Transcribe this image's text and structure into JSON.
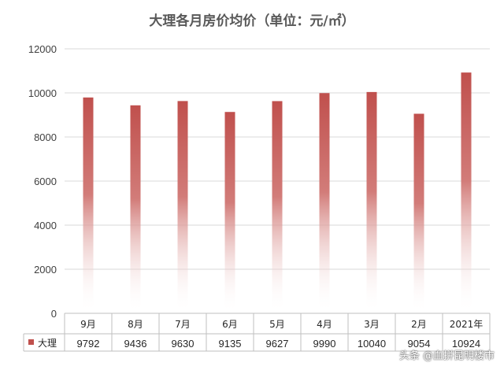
{
  "watermark": "头条 @血拼昆明楼市",
  "chart_data": {
    "type": "bar",
    "title": "大理各月房价均价（单位：元/㎡）",
    "categories": [
      "9月",
      "8月",
      "7月",
      "6月",
      "5月",
      "4月",
      "3月",
      "2月",
      "2021年"
    ],
    "series": [
      {
        "name": "大理",
        "values": [
          9792,
          9436,
          9630,
          9135,
          9627,
          9990,
          10040,
          9054,
          10924
        ],
        "color": "#c0504d"
      }
    ],
    "ylim": [
      0,
      12000
    ],
    "yticks": [
      0,
      2000,
      4000,
      6000,
      8000,
      10000,
      12000
    ],
    "grid": true,
    "legend_position": "data-table",
    "bar_fill": "gradient-fade-to-white"
  }
}
